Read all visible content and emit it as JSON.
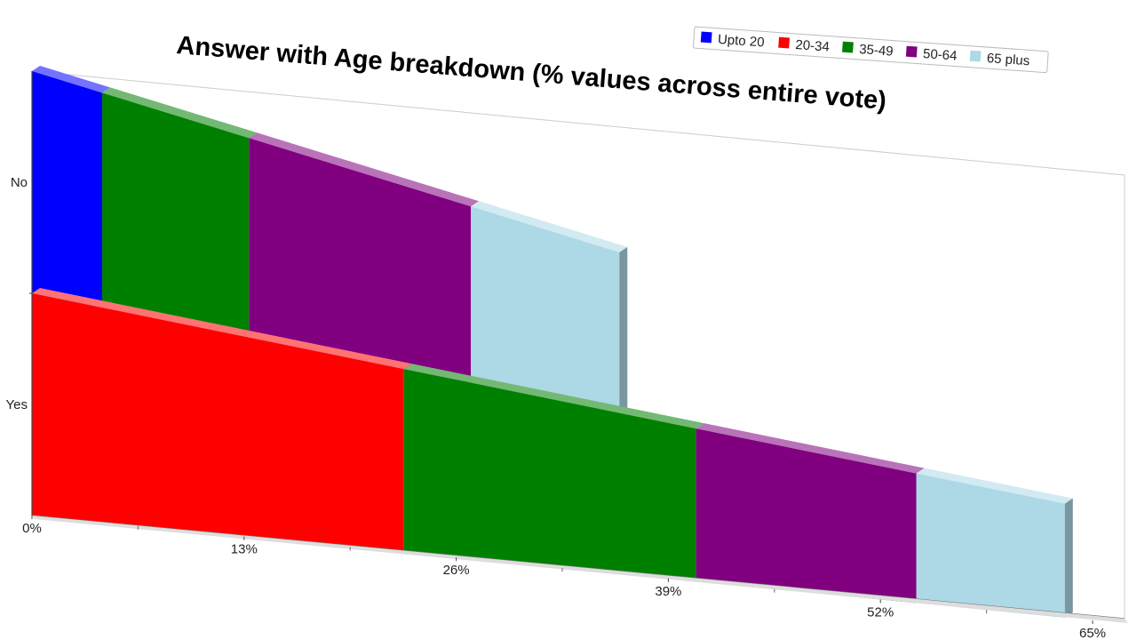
{
  "chart_data": {
    "type": "bar",
    "orientation": "horizontal",
    "stacked": true,
    "title": "Answer with Age breakdown (% values across entire vote)",
    "categories": [
      "No",
      "Yes"
    ],
    "series": [
      {
        "name": "Upto 20",
        "color": "#0000ff",
        "values": [
          4.3,
          0
        ]
      },
      {
        "name": "20-34",
        "color": "#ff0000",
        "values": [
          0,
          22.8
        ]
      },
      {
        "name": "35-49",
        "color": "#008000",
        "values": [
          9.0,
          17.9
        ]
      },
      {
        "name": "50-64",
        "color": "#800080",
        "values": [
          13.6,
          13.5
        ]
      },
      {
        "name": "65 plus",
        "color": "#add8e6",
        "values": [
          9.1,
          9.1
        ]
      }
    ],
    "xlim": [
      0,
      65
    ],
    "xticks": [
      {
        "value": 0,
        "label": "0%"
      },
      {
        "value": 13,
        "label": "13%"
      },
      {
        "value": 26,
        "label": "26%"
      },
      {
        "value": 39,
        "label": "39%"
      },
      {
        "value": 52,
        "label": "52%"
      },
      {
        "value": 65,
        "label": "65%"
      }
    ],
    "legend_position": "top-right",
    "grid": false
  }
}
